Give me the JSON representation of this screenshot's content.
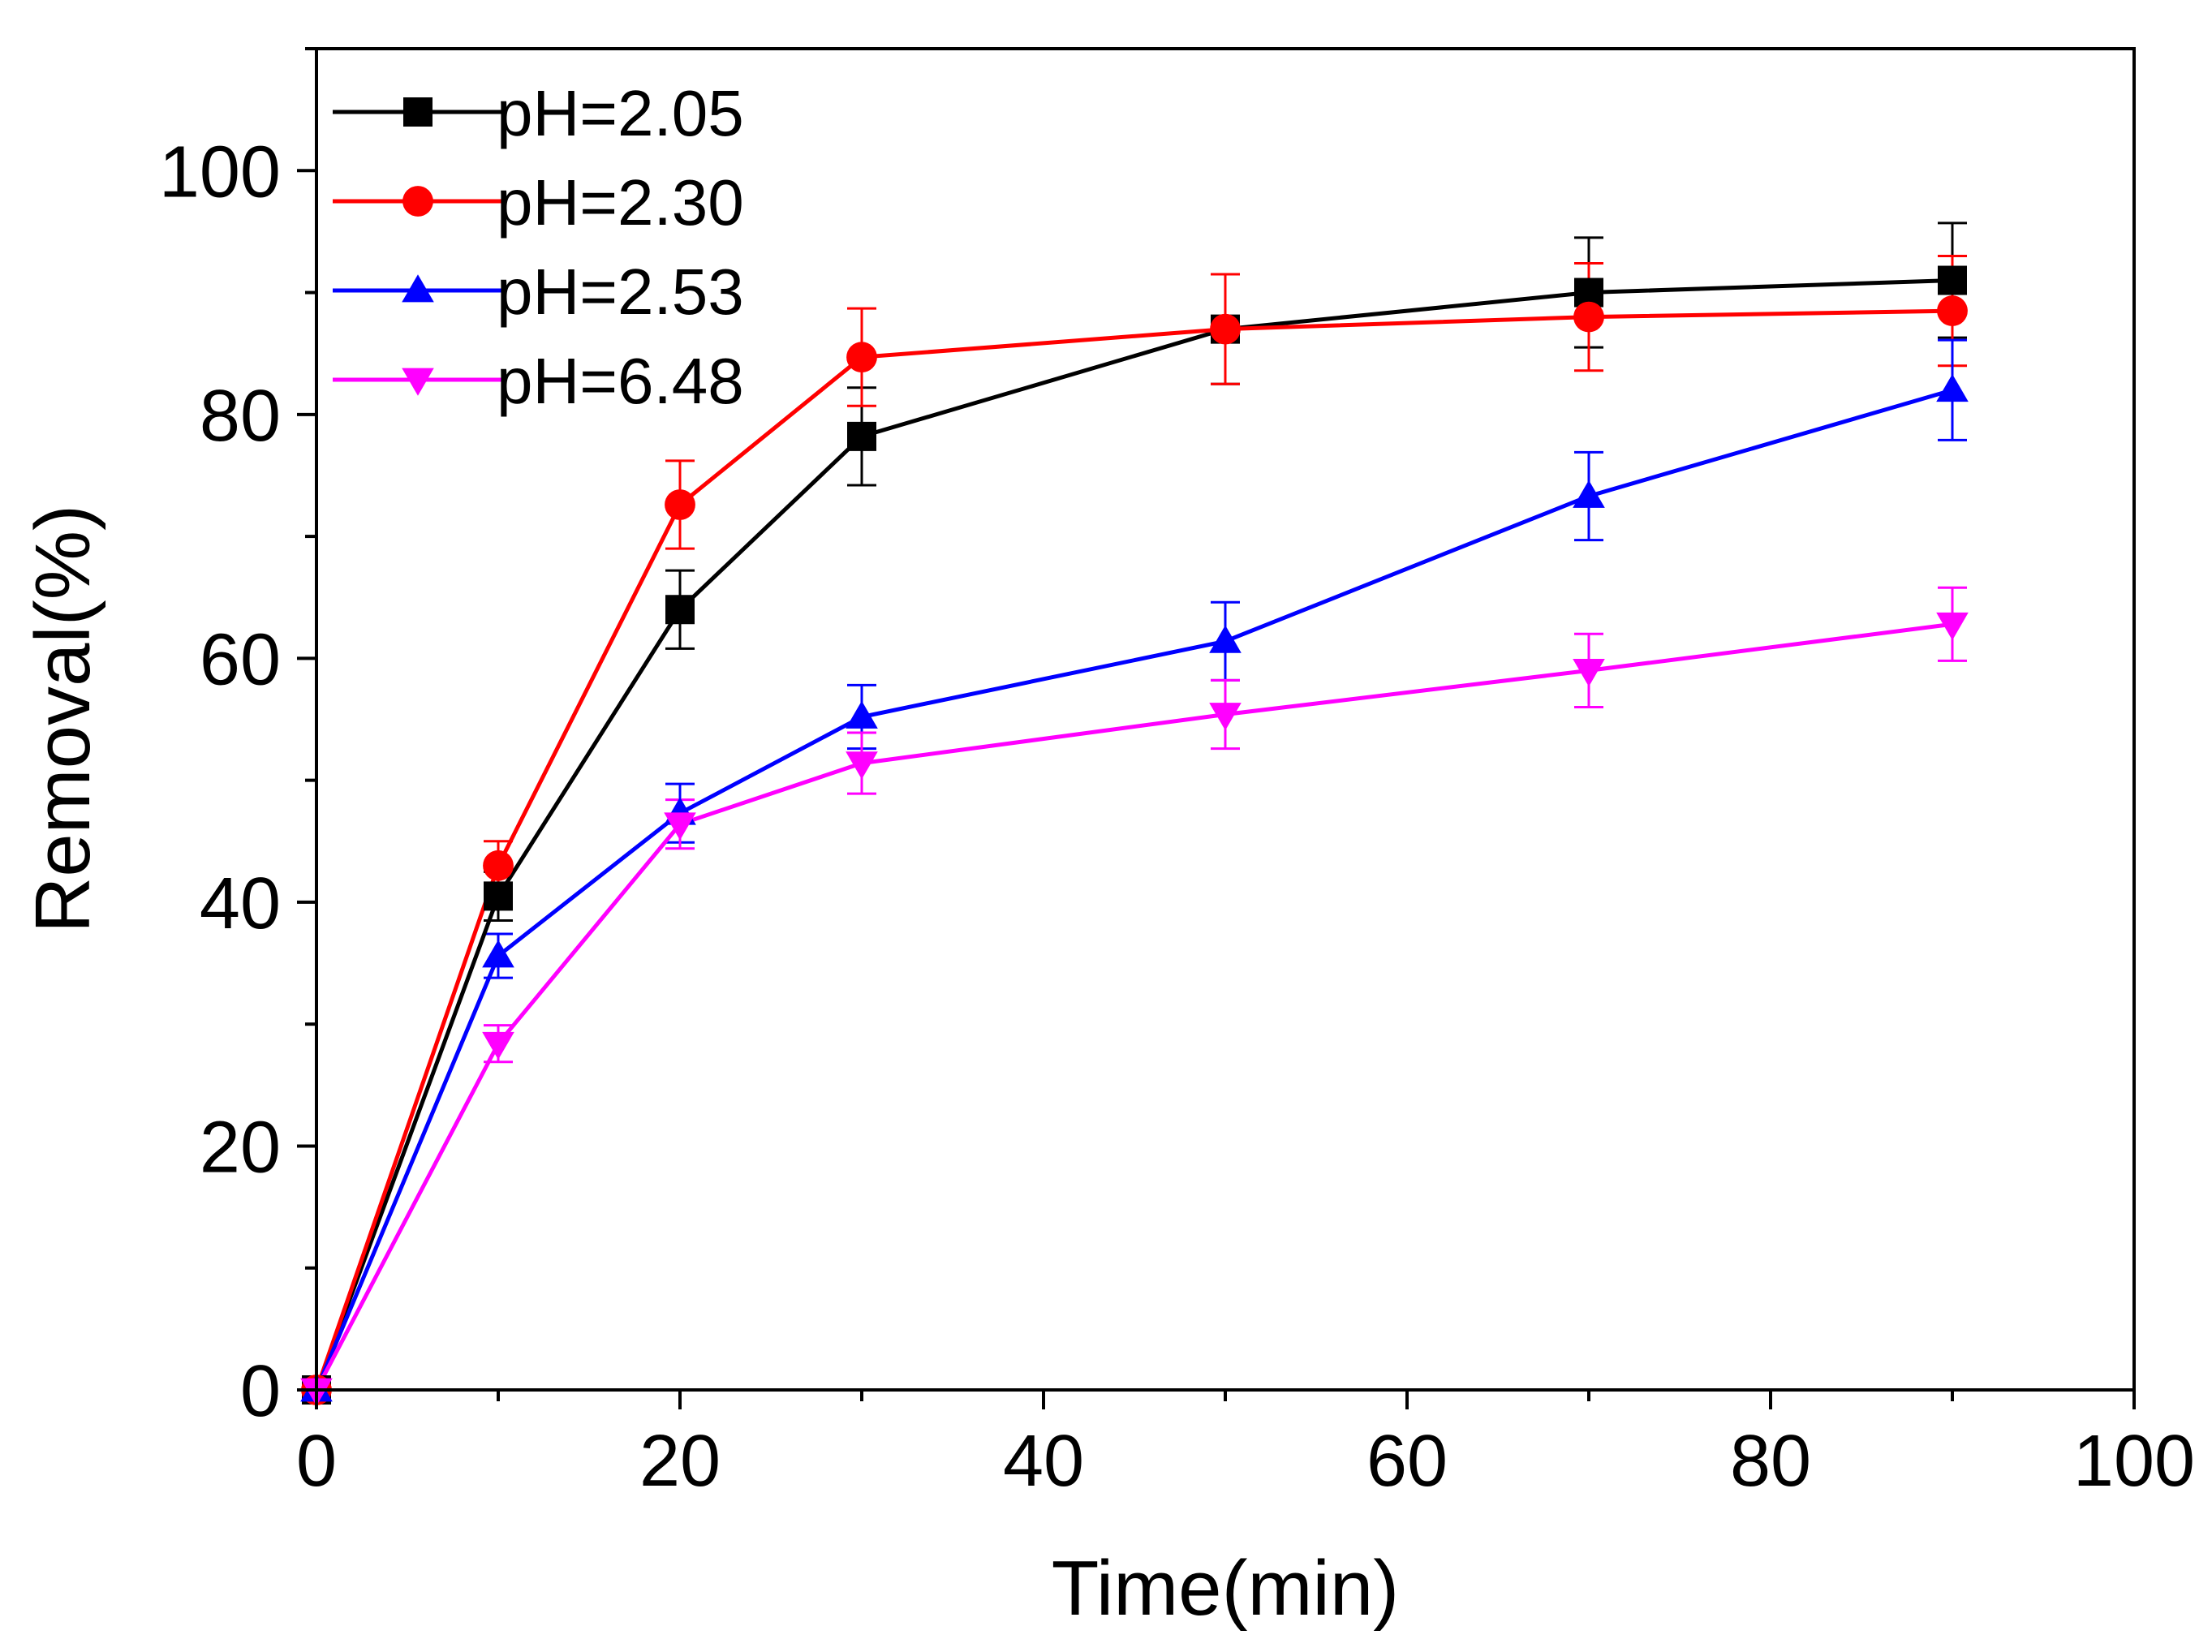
{
  "chart_data": {
    "type": "line",
    "title": "",
    "xlabel": "Time(min)",
    "ylabel": "Removal(%)",
    "xlim": [
      0,
      100
    ],
    "ylim": [
      0,
      110
    ],
    "x_ticks": [
      0,
      20,
      40,
      60,
      80,
      100
    ],
    "y_ticks": [
      0,
      20,
      40,
      60,
      80,
      100
    ],
    "grid": false,
    "legend_position": "top-left",
    "x": [
      0,
      10,
      20,
      30,
      50,
      70,
      90
    ],
    "series": [
      {
        "name": "pH=2.05",
        "color": "#000000",
        "marker": "square",
        "values": [
          0,
          40.5,
          64,
          78.2,
          87,
          90,
          91
        ],
        "errors": [
          0,
          2.0,
          3.2,
          4.0,
          4.5,
          4.5,
          4.7
        ]
      },
      {
        "name": "pH=2.30",
        "color": "#ff0000",
        "marker": "circle",
        "values": [
          0,
          43,
          72.6,
          84.7,
          87,
          88,
          88.5
        ],
        "errors": [
          0,
          2.0,
          3.6,
          4.0,
          4.5,
          4.4,
          4.5
        ]
      },
      {
        "name": "pH=2.53",
        "color": "#0000ff",
        "marker": "triangle-up",
        "values": [
          0,
          35.6,
          47.3,
          55.2,
          61.4,
          73.3,
          82
        ],
        "errors": [
          0,
          1.8,
          2.4,
          2.6,
          3.2,
          3.6,
          4.1
        ]
      },
      {
        "name": "pH=6.48",
        "color": "#ff00ff",
        "marker": "triangle-down",
        "values": [
          0,
          28.4,
          46.4,
          51.4,
          55.4,
          59,
          62.8
        ],
        "errors": [
          0,
          1.5,
          2.0,
          2.5,
          2.8,
          3.0,
          3.0
        ]
      }
    ]
  }
}
